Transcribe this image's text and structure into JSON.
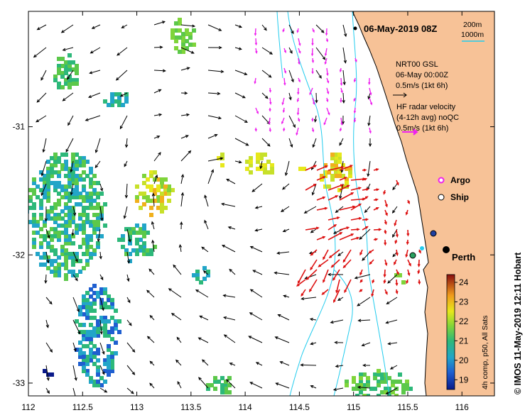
{
  "title": "06-May-2019 08Z",
  "scale": {
    "line1": "200m",
    "line2": "1000m"
  },
  "nrt_legend": {
    "line1": "NRT00 GSL",
    "line2": "06-May 00:00Z",
    "line3": "0.5m/s (1kt 6h)"
  },
  "hf_legend": {
    "line1": "HF radar velocity",
    "line2": "(4-12h avg) noQC",
    "line3": "0.5m/s (1kt 6h)"
  },
  "legend": {
    "argo": "Argo",
    "ship": "Ship"
  },
  "city": "Perth",
  "colorbar": {
    "label": "4h comp, p50, All Sats",
    "min": 18.5,
    "max": 24.4,
    "ticks": [
      "24",
      "23",
      "22",
      "21",
      "20",
      "19"
    ]
  },
  "axes": {
    "x_ticks": [
      "112",
      "112.5",
      "113",
      "113.5",
      "114",
      "114.5",
      "115",
      "115.5",
      "116"
    ],
    "y_ticks": [
      "-31",
      "-32",
      "-33"
    ],
    "xlim": [
      112,
      116.3
    ],
    "ylim": [
      -33.1,
      -30.1
    ]
  },
  "credit": "© IMOS 11-May-2019 12:11 Hobart",
  "colors": {
    "land": "#f7c297",
    "hf_vectors": "#dd1111",
    "argo_vectors": "#ee22ee",
    "isobath": "#22ccee"
  }
}
